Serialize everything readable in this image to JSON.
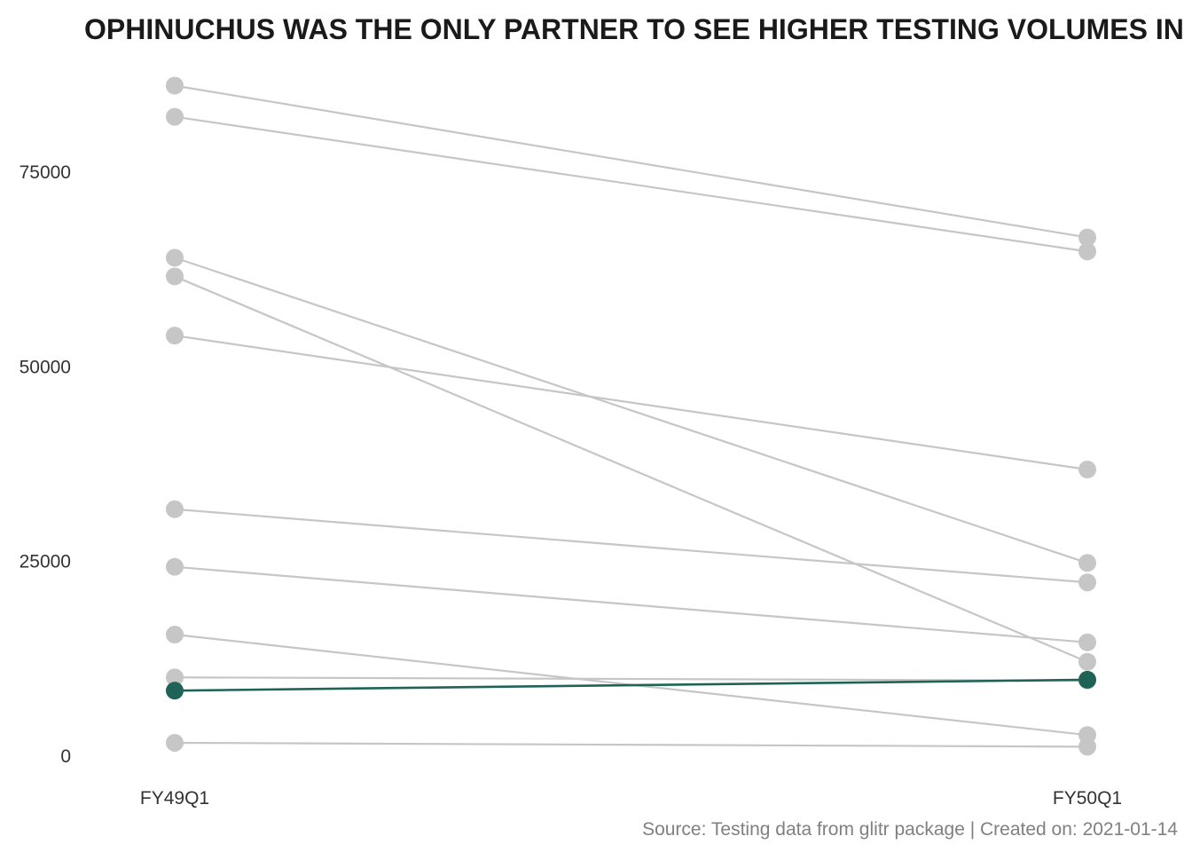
{
  "chart_data": {
    "type": "line",
    "subtype": "slope",
    "title": "OPHINUCHUS WAS THE ONLY PARTNER TO SEE HIGHER TESTING VOLUMES IN",
    "caption": "Source: Testing data from glitr package | Created on: 2021-01-14",
    "xlabel": "",
    "ylabel": "",
    "x": [
      "FY49Q1",
      "FY50Q1"
    ],
    "y_ticks": [
      0,
      25000,
      50000,
      75000
    ],
    "ylim": [
      -1500,
      92000
    ],
    "grid": false,
    "legend": "none",
    "colors": {
      "highlight": "#1f6357",
      "muted": "#c6c6c6",
      "title": "#1a1a1a",
      "axis_text": "#333333",
      "caption": "#808080"
    },
    "series": [
      {
        "values": [
          86000,
          66500
        ],
        "highlight": false
      },
      {
        "values": [
          82000,
          64700
        ],
        "highlight": false
      },
      {
        "values": [
          63900,
          24700
        ],
        "highlight": false
      },
      {
        "values": [
          61500,
          12000
        ],
        "highlight": false
      },
      {
        "values": [
          53900,
          36700
        ],
        "highlight": false
      },
      {
        "values": [
          31600,
          22200
        ],
        "highlight": false
      },
      {
        "values": [
          24200,
          14500
        ],
        "highlight": false
      },
      {
        "values": [
          15500,
          2600
        ],
        "highlight": false
      },
      {
        "values": [
          10000,
          9600
        ],
        "highlight": false
      },
      {
        "values": [
          1600,
          1100
        ],
        "highlight": false
      },
      {
        "values": [
          8300,
          9700
        ],
        "highlight": true
      }
    ]
  }
}
